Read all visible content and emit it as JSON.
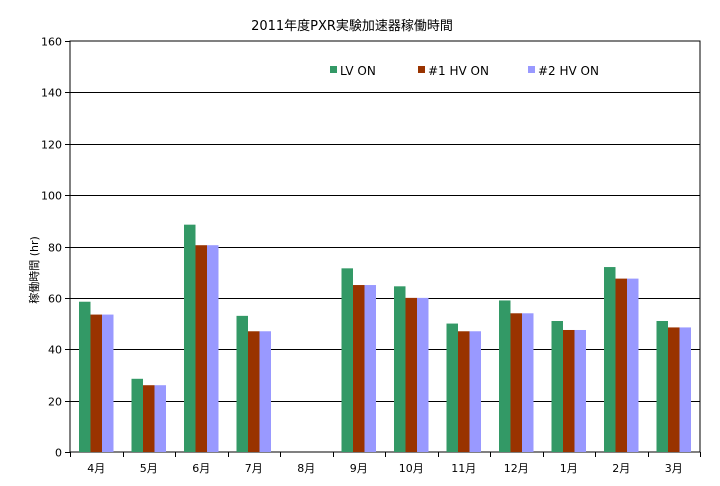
{
  "chart_data": {
    "type": "bar",
    "title": "2011年度PXR実験加速器稼働時間",
    "ylabel": "稼働時間 (hr)",
    "xlabel": "",
    "ylim": [
      0,
      160
    ],
    "yticks": [
      0,
      20,
      40,
      60,
      80,
      100,
      120,
      140,
      160
    ],
    "grid": true,
    "legend_position": "top-right",
    "categories": [
      "4月",
      "5月",
      "6月",
      "7月",
      "8月",
      "9月",
      "10月",
      "11月",
      "12月",
      "1月",
      "2月",
      "3月"
    ],
    "series": [
      {
        "name": "LV ON",
        "color": "#339966",
        "values": [
          58.5,
          28.5,
          88.5,
          53,
          0,
          71.5,
          64.5,
          50,
          59,
          51,
          72,
          51
        ]
      },
      {
        "name": "#1  HV ON",
        "color": "#993300",
        "values": [
          53.5,
          26,
          80.5,
          47,
          0,
          65,
          60,
          47,
          54,
          47.5,
          67.5,
          48.5
        ]
      },
      {
        "name": "#2  HV ON",
        "color": "#9999FF",
        "values": [
          53.5,
          26,
          80.5,
          47,
          0,
          65,
          60,
          47,
          54,
          47.5,
          67.5,
          48.5
        ]
      }
    ]
  }
}
